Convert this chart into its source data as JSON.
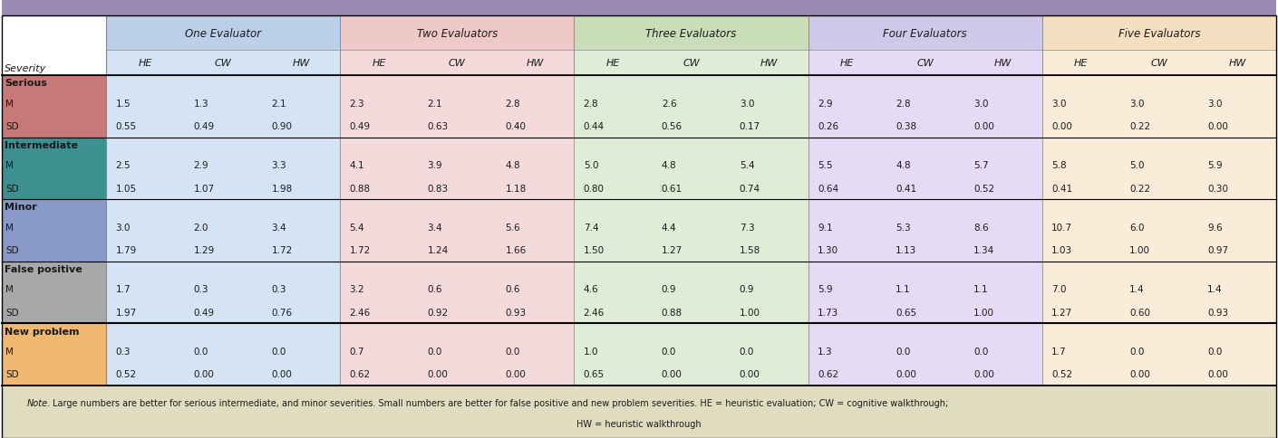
{
  "title_bar_color": "#9b8bb4",
  "header_bg_colors": {
    "One Evaluator": "#bccfe8",
    "Two Evaluators": "#efc8c8",
    "Three Evaluators": "#c8ddb8",
    "Four Evaluators": "#d0c8e8",
    "Five Evaluators": "#f5dfc0"
  },
  "severity_colors": {
    "Serious": "#c97878",
    "Intermediate": "#3d9090",
    "Minor": "#8898c8",
    "False positive": "#a8a8a8",
    "New problem": "#f0b870"
  },
  "col_bg_colors": {
    "One Evaluator": "#d4e4f4",
    "Two Evaluators": "#f4dada",
    "Three Evaluators": "#deecd8",
    "Four Evaluators": "#e4dcf4",
    "Five Evaluators": "#faecd8"
  },
  "note_bg": "#e0dcc0",
  "evaluator_groups": [
    "One Evaluator",
    "Two Evaluators",
    "Three Evaluators",
    "Four Evaluators",
    "Five Evaluators"
  ],
  "sub_cols": [
    "HE",
    "CW",
    "HW"
  ],
  "rows": [
    {
      "severity": "Serious",
      "label": "Serious",
      "type": "header"
    },
    {
      "severity": "Serious",
      "label": "M",
      "type": "data",
      "values": [
        1.5,
        1.3,
        2.1,
        2.3,
        2.1,
        2.8,
        2.8,
        2.6,
        3.0,
        2.9,
        2.8,
        3.0,
        3.0,
        3.0,
        3.0
      ]
    },
    {
      "severity": "Serious",
      "label": "SD",
      "type": "data",
      "values": [
        0.55,
        0.49,
        0.9,
        0.49,
        0.63,
        0.4,
        0.44,
        0.56,
        0.17,
        0.26,
        0.38,
        0.0,
        0.0,
        0.22,
        0.0
      ]
    },
    {
      "severity": "Intermediate",
      "label": "Intermediate",
      "type": "header"
    },
    {
      "severity": "Intermediate",
      "label": "M",
      "type": "data",
      "values": [
        2.5,
        2.9,
        3.3,
        4.1,
        3.9,
        4.8,
        5.0,
        4.8,
        5.4,
        5.5,
        4.8,
        5.7,
        5.8,
        5.0,
        5.9
      ]
    },
    {
      "severity": "Intermediate",
      "label": "SD",
      "type": "data",
      "values": [
        1.05,
        1.07,
        1.98,
        0.88,
        0.83,
        1.18,
        0.8,
        0.61,
        0.74,
        0.64,
        0.41,
        0.52,
        0.41,
        0.22,
        0.3
      ]
    },
    {
      "severity": "Minor",
      "label": "Minor",
      "type": "header"
    },
    {
      "severity": "Minor",
      "label": "M",
      "type": "data",
      "values": [
        3.0,
        2.0,
        3.4,
        5.4,
        3.4,
        5.6,
        7.4,
        4.4,
        7.3,
        9.1,
        5.3,
        8.6,
        10.7,
        6.0,
        9.6
      ]
    },
    {
      "severity": "Minor",
      "label": "SD",
      "type": "data",
      "values": [
        1.79,
        1.29,
        1.72,
        1.72,
        1.24,
        1.66,
        1.5,
        1.27,
        1.58,
        1.3,
        1.13,
        1.34,
        1.03,
        1.0,
        0.97
      ]
    },
    {
      "severity": "False positive",
      "label": "False positive",
      "type": "header"
    },
    {
      "severity": "False positive",
      "label": "M",
      "type": "data",
      "values": [
        1.7,
        0.3,
        0.3,
        3.2,
        0.6,
        0.6,
        4.6,
        0.9,
        0.9,
        5.9,
        1.1,
        1.1,
        7.0,
        1.4,
        1.4
      ]
    },
    {
      "severity": "False positive",
      "label": "SD",
      "type": "data",
      "values": [
        1.97,
        0.49,
        0.76,
        2.46,
        0.92,
        0.93,
        2.46,
        0.88,
        1.0,
        1.73,
        0.65,
        1.0,
        1.27,
        0.6,
        0.93
      ]
    },
    {
      "severity": "New problem",
      "label": "New problem",
      "type": "header"
    },
    {
      "severity": "New problem",
      "label": "M",
      "type": "data",
      "values": [
        0.3,
        0.0,
        0.0,
        0.7,
        0.0,
        0.0,
        1.0,
        0.0,
        0.0,
        1.3,
        0.0,
        0.0,
        1.7,
        0.0,
        0.0
      ]
    },
    {
      "severity": "New problem",
      "label": "SD",
      "type": "data",
      "values": [
        0.52,
        0.0,
        0.0,
        0.62,
        0.0,
        0.0,
        0.65,
        0.0,
        0.0,
        0.62,
        0.0,
        0.0,
        0.52,
        0.0,
        0.0
      ]
    }
  ],
  "note_line1": "Large numbers are better for serious intermediate, and minor severities. Small numbers are better for false positive and new problem severities. HE = heuristic evaluation; CW = cognitive walkthrough;",
  "note_line2": "HW = heuristic walkthrough",
  "note_italic": "Note."
}
